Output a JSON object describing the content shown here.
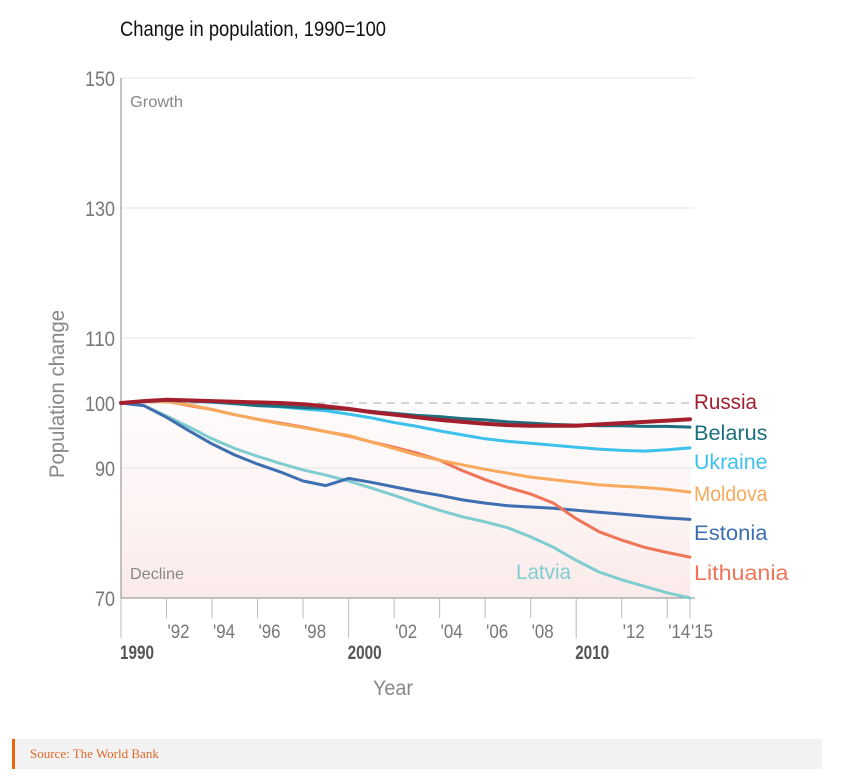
{
  "chart_data": {
    "type": "line",
    "title": "Change in population, 1990=100",
    "xlabel": "Year",
    "ylabel": "Population change",
    "ylim": [
      70,
      150
    ],
    "xlim": [
      1990,
      2015
    ],
    "yticks": [
      70,
      90,
      100,
      110,
      130,
      150
    ],
    "xticks": [
      {
        "value": 1990,
        "label": "1990",
        "major": true
      },
      {
        "value": 1992,
        "label": "'92"
      },
      {
        "value": 1994,
        "label": "'94"
      },
      {
        "value": 1996,
        "label": "'96"
      },
      {
        "value": 1998,
        "label": "'98"
      },
      {
        "value": 2000,
        "label": "2000",
        "major": true
      },
      {
        "value": 2002,
        "label": "'02"
      },
      {
        "value": 2004,
        "label": "'04"
      },
      {
        "value": 2006,
        "label": "'06"
      },
      {
        "value": 2008,
        "label": "'08"
      },
      {
        "value": 2010,
        "label": "2010",
        "major": true
      },
      {
        "value": 2012,
        "label": "'12"
      },
      {
        "value": 2014,
        "label": "'14"
      },
      {
        "value": 2015,
        "label": "'15"
      }
    ],
    "annotations": {
      "growth": "Growth",
      "decline": "Decline"
    },
    "reference_line": 100,
    "x": [
      1990,
      1991,
      1992,
      1993,
      1994,
      1995,
      1996,
      1997,
      1998,
      1999,
      2000,
      2001,
      2002,
      2003,
      2004,
      2005,
      2006,
      2007,
      2008,
      2009,
      2010,
      2011,
      2012,
      2013,
      2014,
      2015
    ],
    "series": [
      {
        "name": "Latvia",
        "color": "#7fcdcf",
        "values": [
          100,
          99.6,
          98.0,
          96.3,
          94.5,
          93.0,
          91.8,
          90.7,
          89.7,
          88.9,
          88.0,
          86.9,
          85.8,
          84.6,
          83.5,
          82.5,
          81.7,
          80.8,
          79.4,
          77.8,
          75.8,
          74.0,
          72.8,
          71.8,
          70.8,
          70.0
        ]
      },
      {
        "name": "Estonia",
        "color": "#3f6fb0",
        "values": [
          100,
          99.6,
          97.8,
          95.7,
          93.7,
          92.0,
          90.6,
          89.4,
          88.0,
          87.3,
          88.4,
          87.8,
          87.1,
          86.4,
          85.8,
          85.1,
          84.6,
          84.2,
          84.0,
          83.8,
          83.5,
          83.2,
          82.9,
          82.6,
          82.3,
          82.1
        ]
      },
      {
        "name": "Lithuania",
        "color": "#ef7458",
        "values": [
          100,
          100.2,
          100.3,
          99.6,
          99.0,
          98.2,
          97.5,
          96.9,
          96.3,
          95.6,
          94.9,
          94.0,
          93.2,
          92.3,
          91.2,
          89.6,
          88.2,
          87.0,
          86.0,
          84.6,
          82.2,
          80.2,
          78.9,
          77.8,
          77.0,
          76.3
        ]
      },
      {
        "name": "Moldova",
        "color": "#f7a95c",
        "values": [
          100,
          100.2,
          100.2,
          99.7,
          99.0,
          98.2,
          97.5,
          96.8,
          96.2,
          95.6,
          95.0,
          94.0,
          93.0,
          92.0,
          91.2,
          90.5,
          89.8,
          89.2,
          88.6,
          88.2,
          87.8,
          87.4,
          87.2,
          87.0,
          86.7,
          86.3
        ]
      },
      {
        "name": "Ukraine",
        "color": "#3cc0ec",
        "values": [
          100,
          100.2,
          100.4,
          100.3,
          100.1,
          99.9,
          99.6,
          99.4,
          99.1,
          98.8,
          98.3,
          97.7,
          97.0,
          96.4,
          95.7,
          95.1,
          94.5,
          94.1,
          93.8,
          93.5,
          93.2,
          92.9,
          92.7,
          92.6,
          92.8,
          93.1
        ]
      },
      {
        "name": "Belarus",
        "color": "#1c6f7e",
        "values": [
          100,
          100.3,
          100.4,
          100.3,
          100.2,
          99.9,
          99.6,
          99.5,
          99.3,
          99.2,
          99.0,
          98.7,
          98.4,
          98.1,
          97.9,
          97.6,
          97.4,
          97.1,
          96.9,
          96.7,
          96.6,
          96.5,
          96.5,
          96.4,
          96.4,
          96.3
        ]
      },
      {
        "name": "Russia",
        "color": "#a31f2e",
        "values": [
          100,
          100.3,
          100.5,
          100.4,
          100.3,
          100.2,
          100.1,
          100.0,
          99.8,
          99.5,
          99.1,
          98.6,
          98.2,
          97.8,
          97.4,
          97.1,
          96.8,
          96.6,
          96.5,
          96.5,
          96.5,
          96.7,
          96.9,
          97.1,
          97.3,
          97.5
        ]
      }
    ],
    "labels_order": [
      "Russia",
      "Belarus",
      "Ukraine",
      "Moldova",
      "Estonia",
      "Lithuania"
    ]
  },
  "source": "Source: The World Bank"
}
